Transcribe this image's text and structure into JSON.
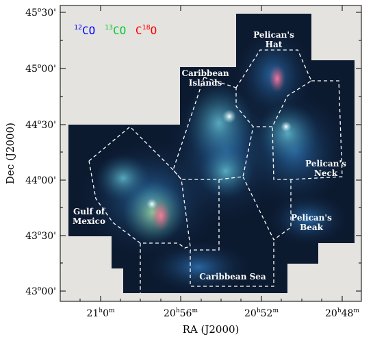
{
  "figure": {
    "x_axis_label": "RA (J2000)",
    "y_axis_label": "Dec (J2000)",
    "x_ticks": [
      {
        "h": "21",
        "hu": "h",
        "m": "0",
        "mu": "m"
      },
      {
        "h": "20",
        "hu": "h",
        "m": "56",
        "mu": "m"
      },
      {
        "h": "20",
        "hu": "h",
        "m": "52",
        "mu": "m"
      },
      {
        "h": "20",
        "hu": "h",
        "m": "48",
        "mu": "m"
      }
    ],
    "y_ticks": [
      {
        "d": "45",
        "m": "30"
      },
      {
        "d": "45",
        "m": "00"
      },
      {
        "d": "44",
        "m": "30"
      },
      {
        "d": "44",
        "m": "00"
      },
      {
        "d": "43",
        "m": "30"
      },
      {
        "d": "43",
        "m": "00"
      }
    ],
    "legend": [
      {
        "sup": "12",
        "text": "CO",
        "color": "#0000ff"
      },
      {
        "sup": "13",
        "text": "CO",
        "color": "#00cc33"
      },
      {
        "sup": "18",
        "text": "O",
        "prefix": "C",
        "color": "#ff0000"
      }
    ],
    "regions": [
      {
        "name": "pelicans-hat",
        "lines": [
          "Pelican's",
          "Hat"
        ]
      },
      {
        "name": "caribbean-islands",
        "lines": [
          "Caribbean",
          "Islands"
        ]
      },
      {
        "name": "pelicans-neck",
        "lines": [
          "Pelican's",
          "Neck"
        ]
      },
      {
        "name": "gulf-of-mexico",
        "lines": [
          "Gulf of",
          "Mexico"
        ]
      },
      {
        "name": "pelicans-beak",
        "lines": [
          "Pelican's",
          "Beak"
        ]
      },
      {
        "name": "caribbean-sea",
        "lines": [
          "Caribbean Sea"
        ]
      }
    ],
    "colors": {
      "background": "#e4e3df",
      "map_base": "#0c1a30",
      "co12": "#0000ff",
      "co13": "#00cc33",
      "c18o": "#ff0000"
    }
  }
}
